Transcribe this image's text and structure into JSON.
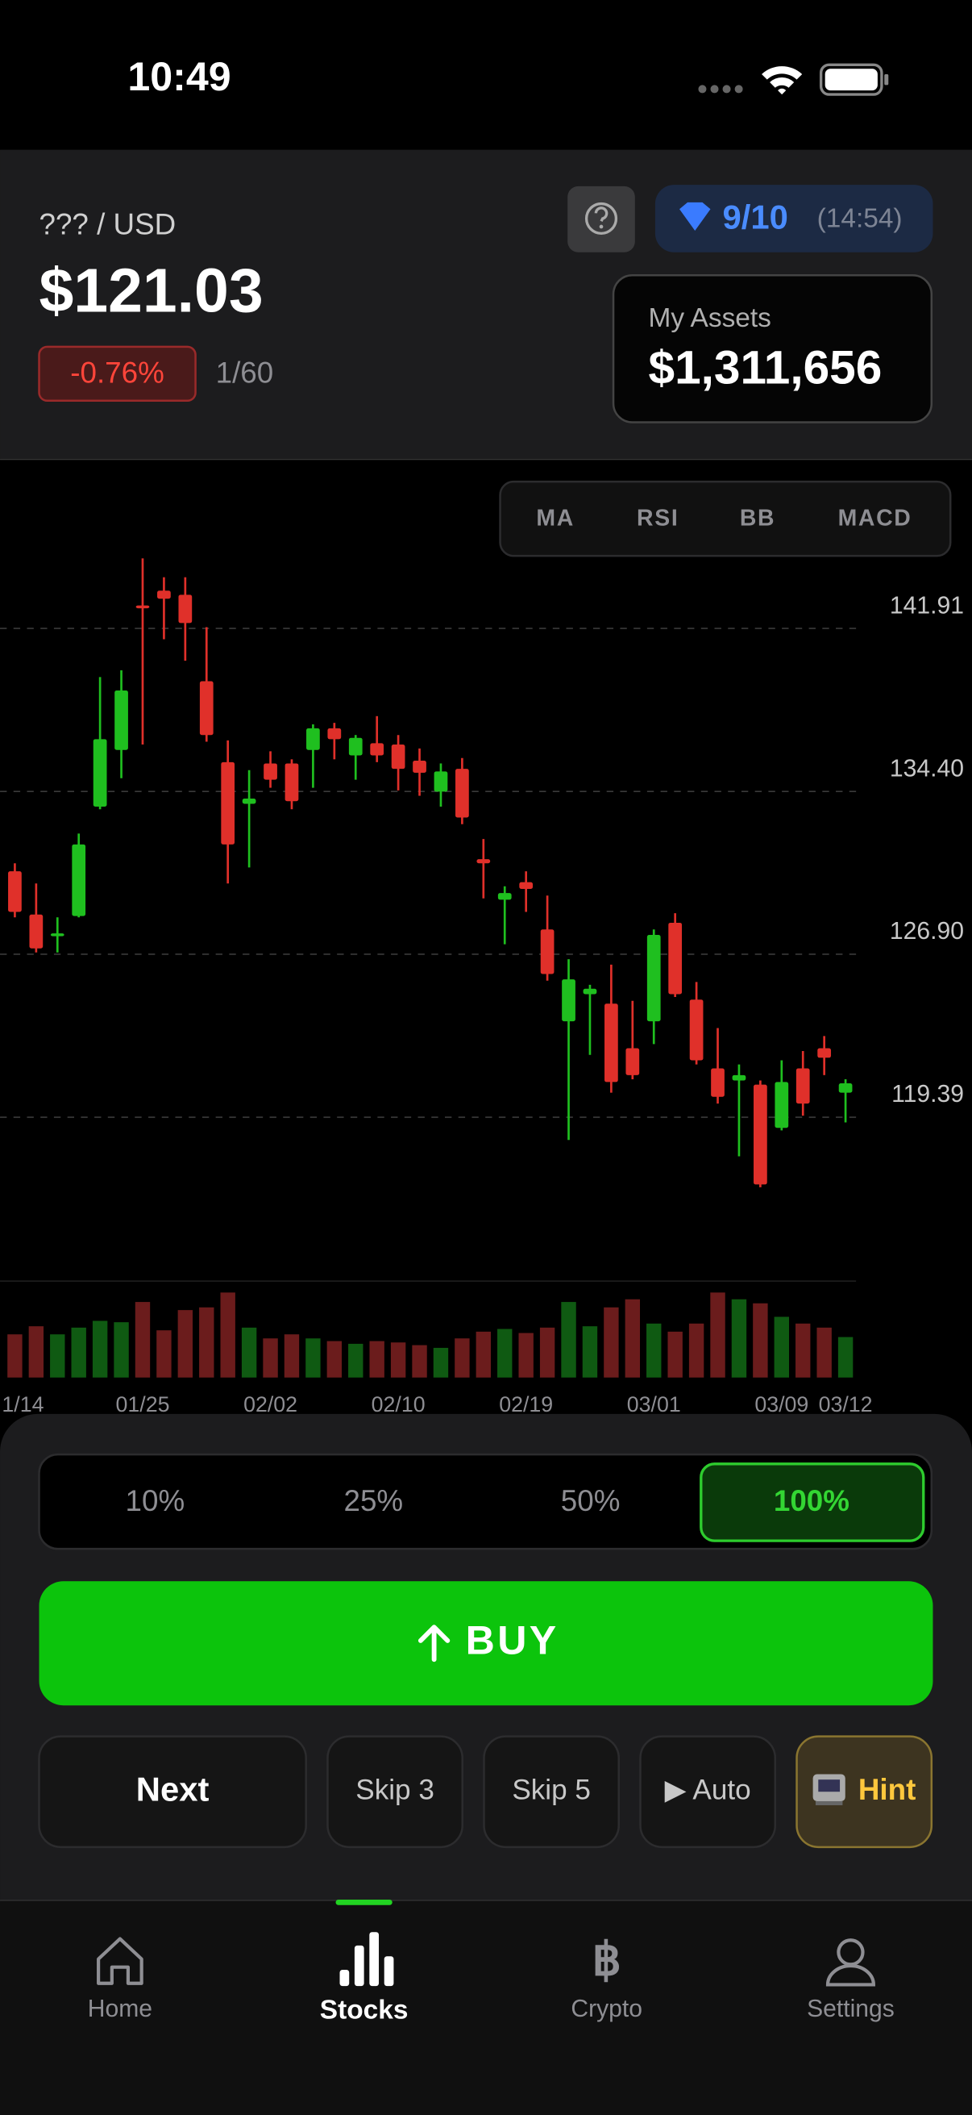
{
  "status_bar": {
    "time": "10:49"
  },
  "header": {
    "pair": "??? / USD",
    "price": "$121.03",
    "change": "-0.76%",
    "progress": "1/60",
    "gems": "9/10",
    "timer": "(14:54)",
    "assets_label": "My Assets",
    "assets_value": "$1,311,656"
  },
  "indicators": [
    "MA",
    "RSI",
    "BB",
    "MACD"
  ],
  "chart_data": {
    "type": "candlestick",
    "categories": [
      "1/14",
      null,
      null,
      null,
      null,
      null,
      "01/25",
      null,
      null,
      null,
      null,
      null,
      "02/02",
      null,
      null,
      null,
      null,
      null,
      "02/10",
      null,
      null,
      null,
      null,
      null,
      "02/19",
      null,
      null,
      null,
      null,
      null,
      "03/01",
      null,
      null,
      null,
      null,
      null,
      "03/09",
      null,
      null,
      "03/12"
    ],
    "open": [
      130.72,
      128.73,
      127.73,
      128.66,
      133.7,
      136.31,
      142.97,
      143.65,
      143.46,
      139.48,
      135.75,
      133.83,
      135.69,
      135.69,
      136.31,
      137.31,
      136.06,
      136.62,
      136.56,
      135.82,
      134.39,
      135.44,
      131.28,
      129.41,
      130.22,
      128.04,
      123.81,
      125.06,
      124.62,
      122.57,
      123.81,
      128.35,
      124.81,
      121.64,
      121.08,
      120.89,
      118.9,
      121.64,
      122.57,
      120.52
    ],
    "high": [
      131.09,
      130.16,
      128.6,
      132.46,
      139.67,
      139.98,
      145.14,
      144.27,
      144.27,
      141.97,
      136.75,
      135.38,
      136.25,
      135.88,
      137.49,
      137.56,
      137.0,
      137.87,
      137.0,
      136.38,
      135.69,
      135.94,
      132.21,
      130.03,
      130.72,
      129.6,
      126.67,
      125.49,
      126.42,
      124.75,
      128.04,
      128.79,
      125.62,
      123.5,
      121.82,
      121.08,
      122.01,
      122.44,
      123.13,
      121.14
    ],
    "low": [
      128.6,
      126.98,
      126.98,
      128.6,
      133.58,
      135.01,
      136.56,
      141.41,
      140.42,
      136.69,
      130.16,
      130.9,
      134.57,
      133.58,
      134.57,
      135.88,
      134.94,
      135.75,
      134.45,
      134.2,
      133.7,
      132.89,
      129.47,
      127.36,
      128.85,
      125.68,
      118.34,
      122.26,
      120.52,
      121.14,
      122.76,
      124.93,
      121.82,
      120.02,
      117.59,
      116.16,
      118.78,
      119.46,
      121.33,
      119.15
    ],
    "close": [
      128.85,
      127.17,
      127.86,
      131.96,
      136.81,
      139.05,
      142.84,
      143.28,
      142.16,
      137.0,
      131.96,
      134.07,
      134.94,
      133.95,
      137.31,
      136.81,
      136.87,
      136.06,
      135.44,
      135.26,
      135.32,
      133.2,
      131.09,
      129.72,
      129.91,
      125.99,
      125.74,
      125.31,
      121.01,
      121.33,
      127.79,
      125.06,
      122.01,
      120.33,
      121.33,
      116.29,
      121.01,
      120.02,
      122.13,
      120.95
    ],
    "volume": [
      32,
      38,
      32,
      37,
      42,
      41,
      56,
      35,
      50,
      52,
      63,
      37,
      29,
      32,
      29,
      27,
      25,
      27,
      26,
      24,
      22,
      29,
      34,
      36,
      33,
      37,
      56,
      38,
      52,
      58,
      40,
      34,
      40,
      63,
      58,
      55,
      45,
      40,
      37,
      30
    ],
    "ylim": [
      112.4,
      146.0
    ],
    "yticks": [
      141.91,
      {
        "value": 134.4,
        "label": "134.40"
      },
      {
        "value": 126.9,
        "label": "126.90"
      },
      119.39
    ],
    "vlim": [
      0,
      70
    ],
    "grid": true,
    "up_color": "#1fbf1f",
    "down_color": "#e0302a",
    "volume_up_color": "#0f5a12",
    "volume_down_color": "#6b1c1c"
  },
  "trade": {
    "amounts": [
      "10%",
      "25%",
      "50%",
      "100%"
    ],
    "selected": 3,
    "buy": "BUY",
    "actions": [
      "Next",
      "Skip 3",
      "Skip 5",
      "▶ Auto",
      "Hint"
    ]
  },
  "tabs": {
    "items": [
      "Home",
      "Stocks",
      "Crypto",
      "Settings"
    ],
    "active": 1
  }
}
